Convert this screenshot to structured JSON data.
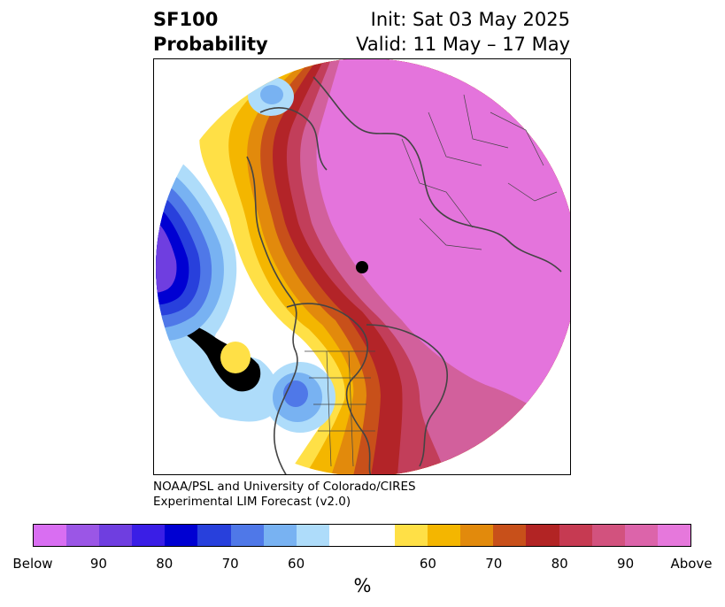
{
  "header": {
    "title_line1": "SF100",
    "title_line2": "Probability",
    "init_label": "Init: Sat 03 May 2025",
    "valid_label": "Valid: 11 May – 17 May"
  },
  "credit": {
    "line1": "NOAA/PSL and University of Colorado/CIRES",
    "line2": "Experimental LIM Forecast (v2.0)"
  },
  "colorbar": {
    "colors": [
      "#d96ef2",
      "#9b56e6",
      "#6f3ee0",
      "#3a1ee6",
      "#0000d2",
      "#2840dc",
      "#4f78e8",
      "#78b2f2",
      "#aedcfa",
      "#ffffff",
      "#ffffff",
      "#ffe046",
      "#f4b600",
      "#e28a0c",
      "#c8501a",
      "#b22424",
      "#c63a52",
      "#d2527e",
      "#dc64aa",
      "#e678dc"
    ],
    "tick_labels": [
      "Below",
      "90",
      "80",
      "70",
      "60",
      "60",
      "70",
      "80",
      "90",
      "Above"
    ],
    "unit": "%"
  },
  "map": {
    "colors": {
      "purple": "#e474dc",
      "magenta": "#d2609c",
      "pink_red": "#c23e5a",
      "dark_red": "#b32428",
      "orange_red": "#c8501a",
      "orange": "#e28a0c",
      "gold": "#f4b600",
      "yellow": "#ffe046",
      "light_blue": "#aedcfa",
      "sky_blue": "#78b2f2",
      "med_blue": "#4f78e8",
      "blue": "#2840dc",
      "deep_blue": "#0000d2",
      "violet": "#6f3ee0",
      "coast": "#444444"
    }
  }
}
